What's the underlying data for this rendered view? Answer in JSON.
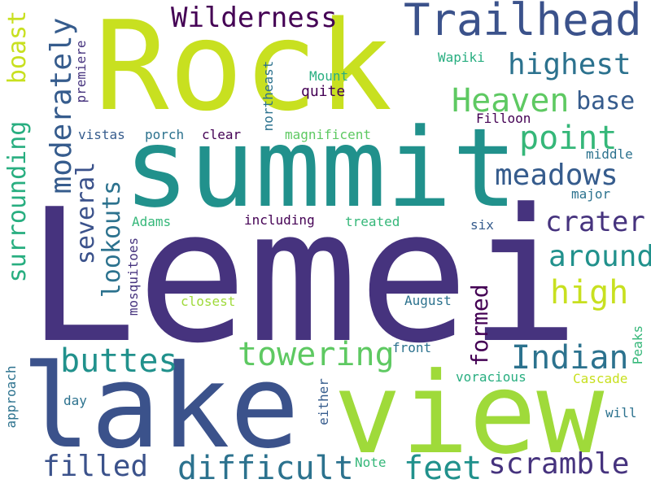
{
  "palette": {
    "dark_indigo": "#46337e",
    "deep_purple": "#440154",
    "slate_blue": "#3b528b",
    "steel_blue": "#365c8d",
    "teal_blue": "#2c728e",
    "teal": "#21918c",
    "sea_green": "#28ae80",
    "green": "#35b779",
    "light_green": "#5ec962",
    "lime": "#9fda3a",
    "yellow_green": "#c8e020",
    "yellow": "#fde725"
  },
  "words": {
    "lemei": "Lemei",
    "rock": "Rock",
    "summit": "summit",
    "lake": "lake",
    "view": "view",
    "trailhead": "Trailhead",
    "wilderness": "Wilderness",
    "highest": "highest",
    "heaven": "Heaven",
    "base": "base",
    "point": "point",
    "meadows": "meadows",
    "crater": "crater",
    "around": "around",
    "high": "high",
    "indian": "Indian",
    "towering": "towering",
    "buttes": "buttes",
    "filled": "filled",
    "difficult": "difficult",
    "feet": "feet",
    "scramble": "scramble",
    "boast": "boast",
    "moderately": "moderately",
    "surrounding": "surrounding",
    "several": "several",
    "lookouts": "lookouts",
    "formed": "formed",
    "premiere": "premiere",
    "northeast": "northeast",
    "mount": "Mount",
    "quite": "quite",
    "wapiki": "Wapiki",
    "filloon": "Filloon",
    "vistas": "vistas",
    "porch": "porch",
    "clear": "clear",
    "magnificent": "magnificent",
    "middle": "middle",
    "major": "major",
    "adams": "Adams",
    "including": "including",
    "treated": "treated",
    "six": "six",
    "mosquitoes": "mosquitoes",
    "closest": "closest",
    "august": "August",
    "peaks": "Peaks",
    "front": "front",
    "voracious": "voracious",
    "cascade": "Cascade",
    "approach": "approach",
    "day": "day",
    "either": "either",
    "will": "will",
    "note": "Note"
  }
}
